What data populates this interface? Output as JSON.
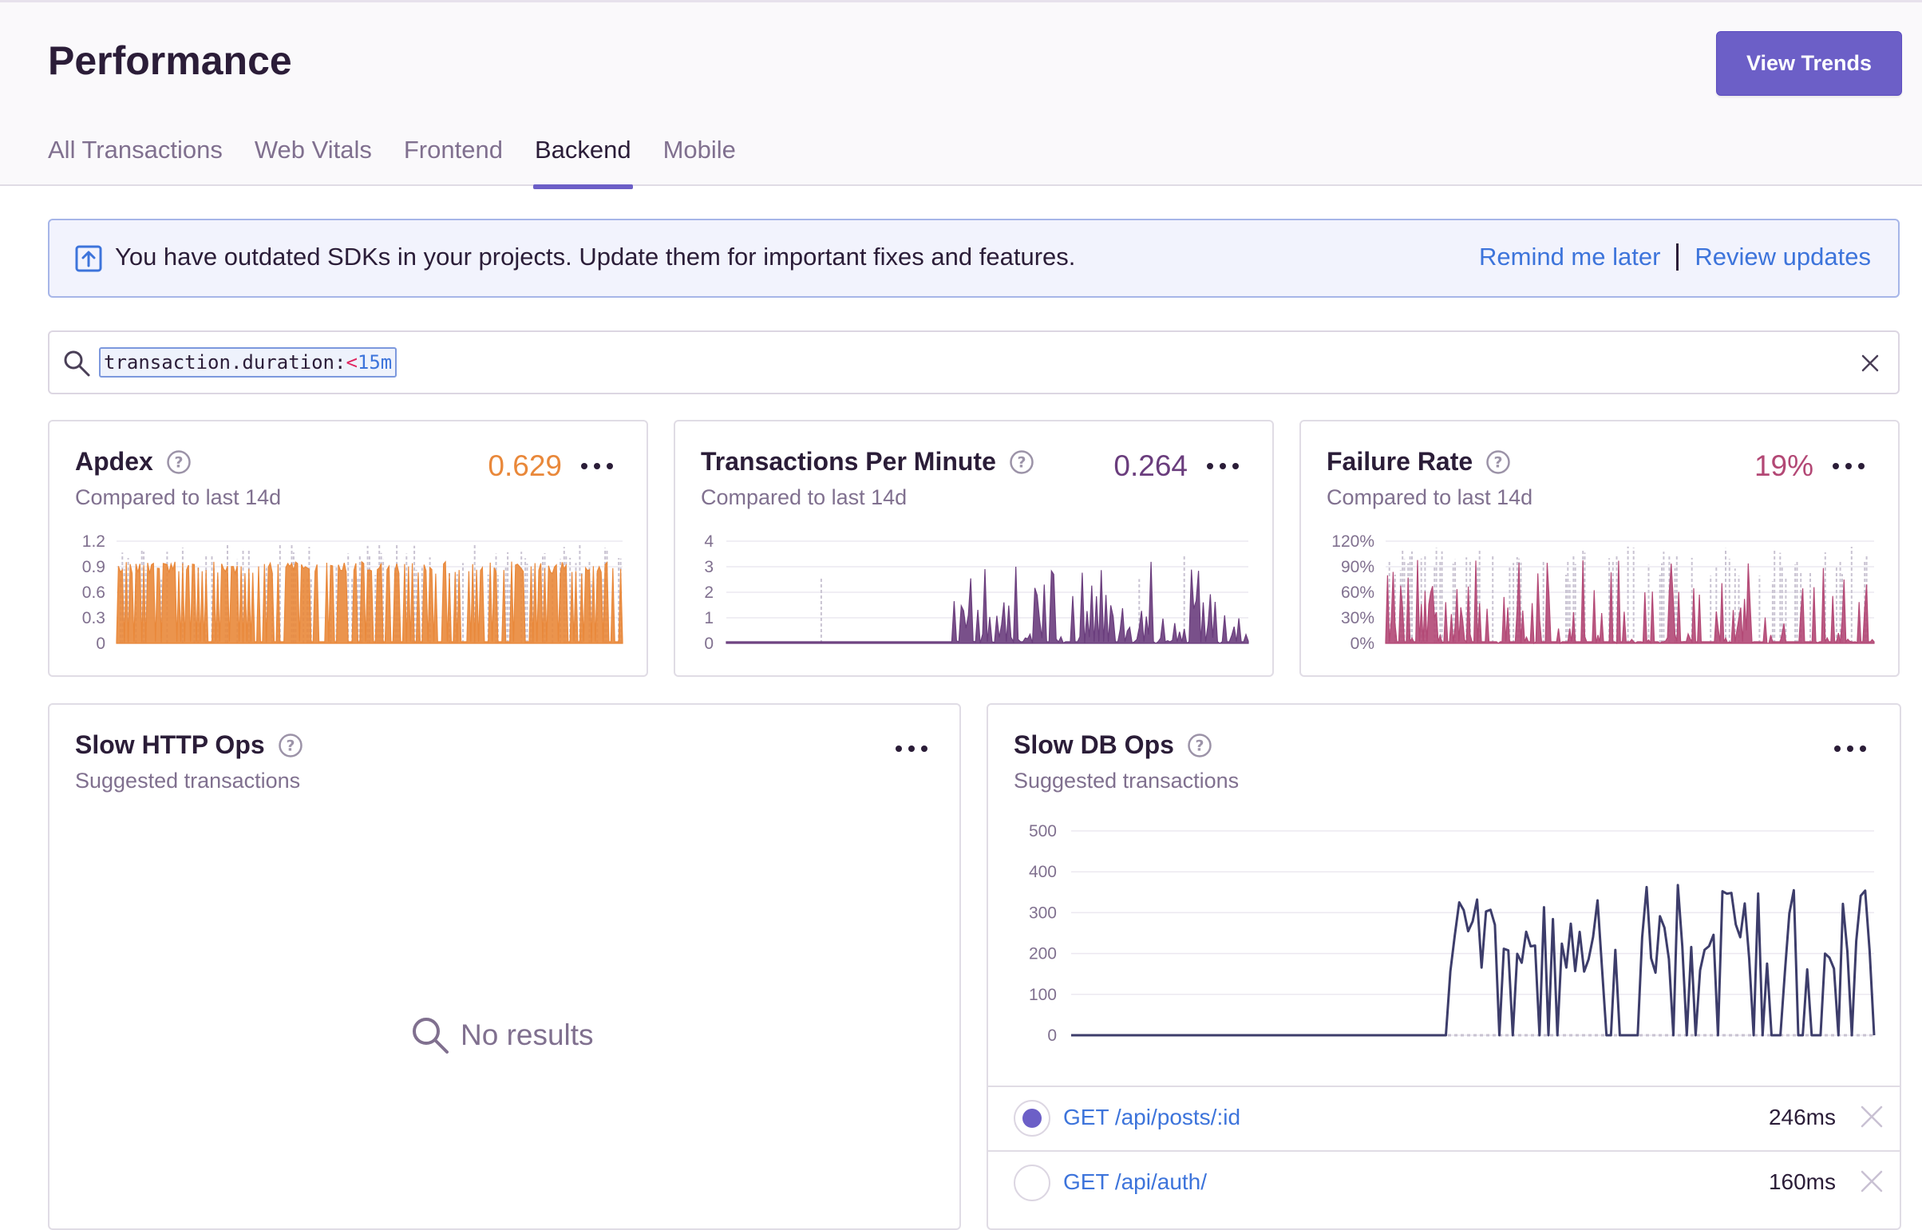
{
  "header": {
    "title": "Performance",
    "view_trends": "View Trends",
    "tabs": [
      "All Transactions",
      "Web Vitals",
      "Frontend",
      "Backend",
      "Mobile"
    ],
    "active_tab": "Backend"
  },
  "alert": {
    "message": "You have outdated SDKs in your projects. Update them for important fixes and features.",
    "remind": "Remind me later",
    "separator": "|",
    "review": "Review updates"
  },
  "search": {
    "key": "transaction.duration:",
    "operator": "<",
    "value": "15m"
  },
  "widgets": {
    "apdex": {
      "title": "Apdex",
      "subtitle": "Compared to last 14d",
      "value": "0.629",
      "color": "#e9883a"
    },
    "tpm": {
      "title": "Transactions Per Minute",
      "subtitle": "Compared to last 14d",
      "value": "0.264",
      "color": "#6a3d7d"
    },
    "failure": {
      "title": "Failure Rate",
      "subtitle": "Compared to last 14d",
      "value": "19%",
      "color": "#b34875"
    },
    "slow_http": {
      "title": "Slow HTTP Ops",
      "subtitle": "Suggested transactions",
      "empty": "No results"
    },
    "slow_db": {
      "title": "Slow DB Ops",
      "subtitle": "Suggested transactions",
      "transactions": [
        {
          "name": "GET /api/posts/:id",
          "duration": "246ms",
          "selected": true
        },
        {
          "name": "GET /api/auth/",
          "duration": "160ms",
          "selected": false
        }
      ]
    }
  },
  "chart_data": [
    {
      "type": "area",
      "title": "Apdex",
      "yticks": [
        "1.2",
        "0.9",
        "0.6",
        "0.3",
        "0"
      ],
      "ylim": [
        0,
        1.2
      ],
      "series": [
        {
          "color": "#e9883a"
        }
      ]
    },
    {
      "type": "area",
      "title": "Transactions Per Minute",
      "yticks": [
        "4",
        "3",
        "2",
        "1",
        "0"
      ],
      "ylim": [
        0,
        4
      ],
      "series": [
        {
          "color": "#6a3d7d"
        }
      ]
    },
    {
      "type": "area",
      "title": "Failure Rate",
      "yticks": [
        "120%",
        "90%",
        "60%",
        "30%",
        "0%"
      ],
      "ylim": [
        0,
        1.2
      ],
      "series": [
        {
          "color": "#b34875"
        }
      ]
    },
    {
      "type": "line",
      "title": "Slow DB Ops",
      "yticks": [
        "500",
        "400",
        "300",
        "200",
        "100",
        "0"
      ],
      "ylim": [
        0,
        500
      ],
      "series": [
        {
          "color": "#3d3d6b"
        }
      ]
    }
  ]
}
